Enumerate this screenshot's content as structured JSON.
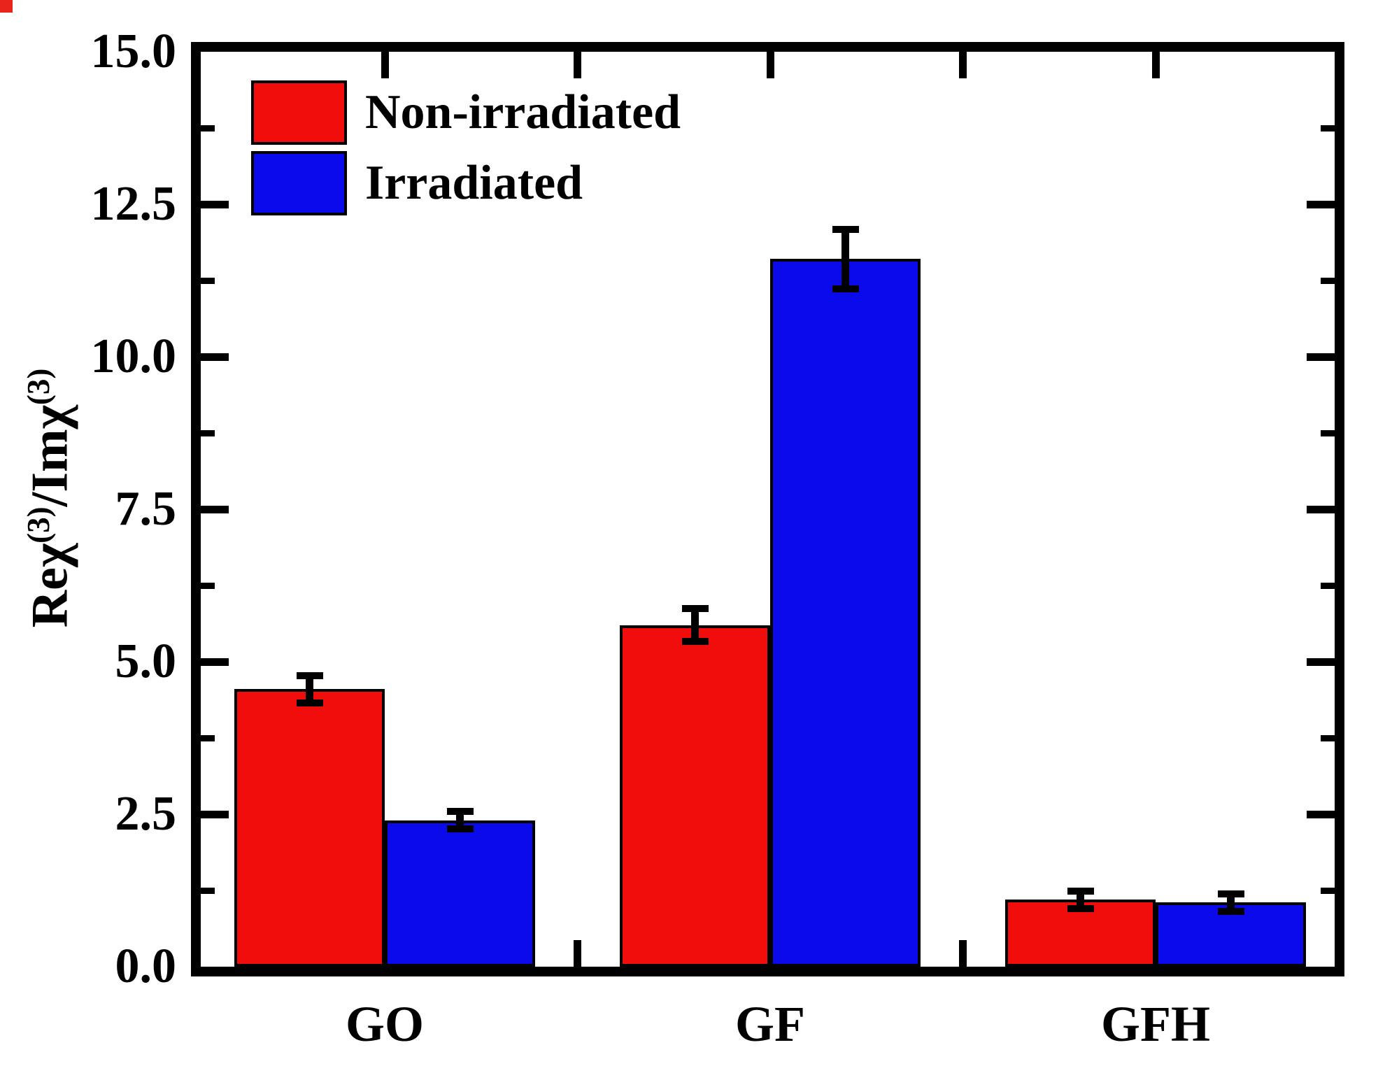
{
  "chart_data": {
    "type": "bar",
    "title": "",
    "categories": [
      "GO",
      "GF",
      "GFH"
    ],
    "series": [
      {
        "name": "Non-irradiated",
        "color": "#f20d0d",
        "values": [
          4.55,
          5.6,
          1.1
        ],
        "errors": [
          0.28,
          0.33,
          0.2
        ]
      },
      {
        "name": "Irradiated",
        "color": "#0a0aeb",
        "values": [
          2.4,
          11.6,
          1.05
        ],
        "errors": [
          0.2,
          0.55,
          0.2
        ]
      }
    ],
    "ylabel": "Reχ(3)/Imχ(3)",
    "ylabel_parts": {
      "base1": "Reχ",
      "sup1": "(3)",
      "base2": "/Imχ",
      "sup2": "(3)"
    },
    "xlabel": "",
    "ylim": [
      0,
      15
    ],
    "ytick_step": 2.5,
    "yminor_step": 1.25,
    "ytick_labels": [
      "0.0",
      "2.5",
      "5.0",
      "7.5",
      "10.0",
      "12.5",
      "15.0"
    ],
    "grid": false,
    "legend_position": "top-left",
    "axis_color": "#000000",
    "background_color": "#ffffff"
  },
  "artifact": {
    "corner_color": "#e8241c"
  }
}
